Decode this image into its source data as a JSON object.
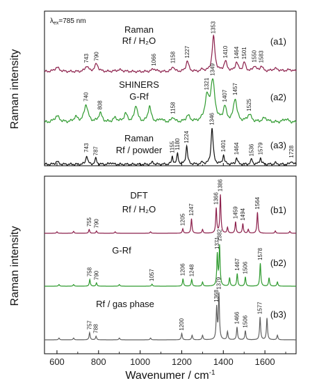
{
  "chart_data": {
    "type": "line",
    "excitation_prefix": "λ",
    "excitation_sub": "ex",
    "excitation_suffix": "=785 nm",
    "xlabel": "Wavenumer / cm",
    "xlabel_sup": "-1",
    "ylabel": "Raman intensity",
    "xlim": [
      540,
      1750
    ],
    "xticks": [
      600,
      800,
      1000,
      1200,
      1400,
      1600
    ],
    "panels": [
      {
        "id": "top",
        "ylabel": "Raman intensity",
        "series": [
          {
            "id": "a1",
            "label": "(a1)",
            "title": [
              "Raman",
              "Rf / H₂O"
            ],
            "color": "#8b1e4a",
            "peaks": [
              {
                "x": 600,
                "h": 0.12,
                "w": 14
              },
              {
                "x": 743,
                "h": 0.16,
                "w": 9
              },
              {
                "x": 790,
                "h": 0.22,
                "w": 10
              },
              {
                "x": 900,
                "h": 0.05,
                "w": 20
              },
              {
                "x": 1066,
                "h": 0.08,
                "w": 12
              },
              {
                "x": 1158,
                "h": 0.15,
                "w": 7
              },
              {
                "x": 1227,
                "h": 0.3,
                "w": 8
              },
              {
                "x": 1300,
                "h": 0.06,
                "w": 8
              },
              {
                "x": 1353,
                "h": 1.0,
                "w": 8
              },
              {
                "x": 1410,
                "h": 0.28,
                "w": 9
              },
              {
                "x": 1464,
                "h": 0.26,
                "w": 8
              },
              {
                "x": 1501,
                "h": 0.25,
                "w": 8
              },
              {
                "x": 1550,
                "h": 0.16,
                "w": 8
              },
              {
                "x": 1583,
                "h": 0.15,
                "w": 8
              },
              {
                "x": 1650,
                "h": 0.08,
                "w": 20
              },
              {
                "x": 1720,
                "h": 0.05,
                "w": 20
              }
            ],
            "annotations": [
              {
                "x": 743,
                "text": "743"
              },
              {
                "x": 790,
                "text": "790"
              },
              {
                "x": 1066,
                "text": "1066"
              },
              {
                "x": 1158,
                "text": "1158"
              },
              {
                "x": 1227,
                "text": "1227"
              },
              {
                "x": 1353,
                "text": "1353"
              },
              {
                "x": 1410,
                "text": "1410"
              },
              {
                "x": 1464,
                "text": "1464"
              },
              {
                "x": 1501,
                "text": "1501"
              },
              {
                "x": 1550,
                "text": "1550"
              },
              {
                "x": 1583,
                "text": "1583"
              }
            ]
          },
          {
            "id": "a2",
            "label": "(a2)",
            "title": [
              "SHINERS",
              "G-Rf"
            ],
            "color": "#2e9a2e",
            "peaks": [
              {
                "x": 600,
                "h": 0.15,
                "w": 15
              },
              {
                "x": 690,
                "h": 0.12,
                "w": 12
              },
              {
                "x": 740,
                "h": 0.42,
                "w": 11
              },
              {
                "x": 808,
                "h": 0.22,
                "w": 10
              },
              {
                "x": 880,
                "h": 0.1,
                "w": 12
              },
              {
                "x": 930,
                "h": 0.2,
                "w": 10
              },
              {
                "x": 980,
                "h": 0.4,
                "w": 9
              },
              {
                "x": 1045,
                "h": 0.38,
                "w": 9
              },
              {
                "x": 1100,
                "h": 0.08,
                "w": 10
              },
              {
                "x": 1158,
                "h": 0.12,
                "w": 8
              },
              {
                "x": 1230,
                "h": 0.15,
                "w": 12
              },
              {
                "x": 1321,
                "h": 0.55,
                "w": 12
              },
              {
                "x": 1349,
                "h": 0.95,
                "w": 12
              },
              {
                "x": 1407,
                "h": 0.35,
                "w": 9
              },
              {
                "x": 1457,
                "h": 0.55,
                "w": 10
              },
              {
                "x": 1525,
                "h": 0.18,
                "w": 12
              },
              {
                "x": 1600,
                "h": 0.1,
                "w": 15
              },
              {
                "x": 1700,
                "h": 0.08,
                "w": 15
              }
            ],
            "annotations": [
              {
                "x": 740,
                "text": "740"
              },
              {
                "x": 808,
                "text": "808"
              },
              {
                "x": 1158,
                "text": "1158"
              },
              {
                "x": 1321,
                "text": "1321"
              },
              {
                "x": 1349,
                "text": "1349"
              },
              {
                "x": 1407,
                "text": "1407"
              },
              {
                "x": 1457,
                "text": "1457"
              },
              {
                "x": 1525,
                "text": "1525"
              }
            ]
          },
          {
            "id": "a3",
            "label": "(a3)",
            "title": [
              "Raman",
              "Rf / powder"
            ],
            "color": "#111111",
            "peaks": [
              {
                "x": 600,
                "h": 0.08,
                "w": 8
              },
              {
                "x": 743,
                "h": 0.25,
                "w": 5
              },
              {
                "x": 787,
                "h": 0.16,
                "w": 5
              },
              {
                "x": 860,
                "h": 0.05,
                "w": 6
              },
              {
                "x": 1060,
                "h": 0.06,
                "w": 6
              },
              {
                "x": 1155,
                "h": 0.22,
                "w": 4
              },
              {
                "x": 1180,
                "h": 0.3,
                "w": 4
              },
              {
                "x": 1224,
                "h": 0.5,
                "w": 5
              },
              {
                "x": 1300,
                "h": 0.06,
                "w": 5
              },
              {
                "x": 1346,
                "h": 1.0,
                "w": 6
              },
              {
                "x": 1401,
                "h": 0.25,
                "w": 5
              },
              {
                "x": 1464,
                "h": 0.18,
                "w": 5
              },
              {
                "x": 1536,
                "h": 0.14,
                "w": 5
              },
              {
                "x": 1579,
                "h": 0.18,
                "w": 5
              },
              {
                "x": 1650,
                "h": 0.04,
                "w": 6
              },
              {
                "x": 1728,
                "h": 0.1,
                "w": 5
              }
            ],
            "annotations": [
              {
                "x": 743,
                "text": "743"
              },
              {
                "x": 787,
                "text": "787"
              },
              {
                "x": 1155,
                "text": "1155"
              },
              {
                "x": 1180,
                "text": "1180"
              },
              {
                "x": 1224,
                "text": "1224"
              },
              {
                "x": 1346,
                "text": "1346"
              },
              {
                "x": 1401,
                "text": "1401"
              },
              {
                "x": 1464,
                "text": "1464"
              },
              {
                "x": 1536,
                "text": "1536"
              },
              {
                "x": 1579,
                "text": "1579"
              },
              {
                "x": 1728,
                "text": "1728"
              }
            ]
          }
        ]
      },
      {
        "id": "bottom",
        "ylabel": "Raman intensity",
        "series": [
          {
            "id": "b1",
            "label": "(b1)",
            "title": [
              "DFT",
              "Rf / H₂O"
            ],
            "color": "#8b1e4a",
            "peaks": [
              {
                "x": 600,
                "h": 0.04,
                "w": 3
              },
              {
                "x": 680,
                "h": 0.05,
                "w": 3
              },
              {
                "x": 755,
                "h": 0.1,
                "w": 3
              },
              {
                "x": 790,
                "h": 0.06,
                "w": 3
              },
              {
                "x": 880,
                "h": 0.04,
                "w": 3
              },
              {
                "x": 1050,
                "h": 0.04,
                "w": 3
              },
              {
                "x": 1205,
                "h": 0.12,
                "w": 3
              },
              {
                "x": 1247,
                "h": 0.38,
                "w": 3
              },
              {
                "x": 1300,
                "h": 0.1,
                "w": 3
              },
              {
                "x": 1366,
                "h": 0.65,
                "w": 3
              },
              {
                "x": 1386,
                "h": 1.0,
                "w": 3
              },
              {
                "x": 1420,
                "h": 0.15,
                "w": 3
              },
              {
                "x": 1459,
                "h": 0.3,
                "w": 3
              },
              {
                "x": 1494,
                "h": 0.25,
                "w": 3
              },
              {
                "x": 1520,
                "h": 0.1,
                "w": 3
              },
              {
                "x": 1564,
                "h": 0.55,
                "w": 3
              },
              {
                "x": 1650,
                "h": 0.06,
                "w": 3
              },
              {
                "x": 1720,
                "h": 0.05,
                "w": 3
              }
            ],
            "annotations": [
              {
                "x": 755,
                "text": "755"
              },
              {
                "x": 790,
                "text": "790"
              },
              {
                "x": 1205,
                "text": "1205"
              },
              {
                "x": 1247,
                "text": "1247"
              },
              {
                "x": 1366,
                "text": "1366"
              },
              {
                "x": 1386,
                "text": "1386"
              },
              {
                "x": 1459,
                "text": "1459"
              },
              {
                "x": 1494,
                "text": "1494"
              },
              {
                "x": 1564,
                "text": "1564"
              }
            ]
          },
          {
            "id": "b2",
            "label": "(b2)",
            "title": [
              "G-Rf"
            ],
            "color": "#2e9a2e",
            "peaks": [
              {
                "x": 610,
                "h": 0.04,
                "w": 3
              },
              {
                "x": 680,
                "h": 0.04,
                "w": 3
              },
              {
                "x": 758,
                "h": 0.16,
                "w": 3
              },
              {
                "x": 790,
                "h": 0.08,
                "w": 3
              },
              {
                "x": 900,
                "h": 0.04,
                "w": 3
              },
              {
                "x": 1057,
                "h": 0.05,
                "w": 3
              },
              {
                "x": 1206,
                "h": 0.18,
                "w": 3
              },
              {
                "x": 1248,
                "h": 0.16,
                "w": 3
              },
              {
                "x": 1300,
                "h": 0.1,
                "w": 3
              },
              {
                "x": 1371,
                "h": 0.75,
                "w": 3
              },
              {
                "x": 1382,
                "h": 0.95,
                "w": 3
              },
              {
                "x": 1430,
                "h": 0.2,
                "w": 3
              },
              {
                "x": 1467,
                "h": 0.3,
                "w": 3
              },
              {
                "x": 1506,
                "h": 0.22,
                "w": 3
              },
              {
                "x": 1578,
                "h": 0.55,
                "w": 3
              },
              {
                "x": 1620,
                "h": 0.2,
                "w": 3
              },
              {
                "x": 1660,
                "h": 0.1,
                "w": 3
              }
            ],
            "annotations": [
              {
                "x": 758,
                "text": "758"
              },
              {
                "x": 790,
                "text": "790"
              },
              {
                "x": 1057,
                "text": "1057"
              },
              {
                "x": 1206,
                "text": "1206"
              },
              {
                "x": 1248,
                "text": "1248"
              },
              {
                "x": 1371,
                "text": "1371"
              },
              {
                "x": 1382,
                "text": "1382"
              },
              {
                "x": 1467,
                "text": "1467"
              },
              {
                "x": 1506,
                "text": "1506"
              },
              {
                "x": 1578,
                "text": "1578"
              }
            ]
          },
          {
            "id": "b3",
            "label": "(b3)",
            "title": [
              "Rf / gas phase"
            ],
            "color": "#606060",
            "peaks": [
              {
                "x": 610,
                "h": 0.04,
                "w": 3
              },
              {
                "x": 680,
                "h": 0.04,
                "w": 3
              },
              {
                "x": 757,
                "h": 0.16,
                "w": 3
              },
              {
                "x": 788,
                "h": 0.08,
                "w": 3
              },
              {
                "x": 900,
                "h": 0.04,
                "w": 3
              },
              {
                "x": 1050,
                "h": 0.04,
                "w": 3
              },
              {
                "x": 1200,
                "h": 0.14,
                "w": 3
              },
              {
                "x": 1250,
                "h": 0.1,
                "w": 3
              },
              {
                "x": 1300,
                "h": 0.1,
                "w": 3
              },
              {
                "x": 1368,
                "h": 0.7,
                "w": 3
              },
              {
                "x": 1379,
                "h": 1.0,
                "w": 3
              },
              {
                "x": 1420,
                "h": 0.18,
                "w": 3
              },
              {
                "x": 1466,
                "h": 0.28,
                "w": 3
              },
              {
                "x": 1506,
                "h": 0.2,
                "w": 3
              },
              {
                "x": 1577,
                "h": 0.5,
                "w": 3
              },
              {
                "x": 1610,
                "h": 0.48,
                "w": 3
              },
              {
                "x": 1660,
                "h": 0.1,
                "w": 3
              }
            ],
            "annotations": [
              {
                "x": 757,
                "text": "757"
              },
              {
                "x": 788,
                "text": "788"
              },
              {
                "x": 1200,
                "text": "1200"
              },
              {
                "x": 1368,
                "text": "1368"
              },
              {
                "x": 1379,
                "text": "1379"
              },
              {
                "x": 1466,
                "text": "1466"
              },
              {
                "x": 1506,
                "text": "1506"
              },
              {
                "x": 1577,
                "text": "1577"
              }
            ]
          }
        ]
      }
    ]
  }
}
